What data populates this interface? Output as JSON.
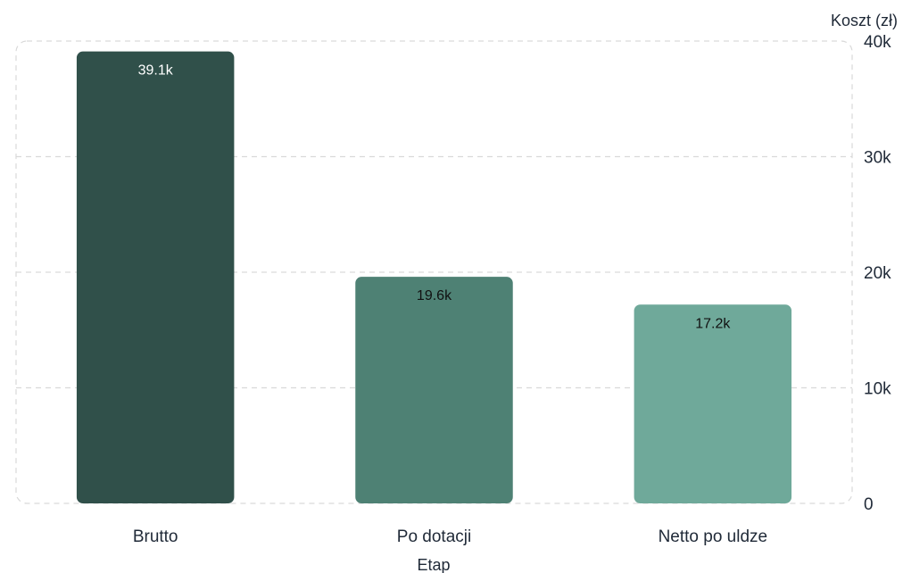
{
  "chart_data": {
    "type": "bar",
    "title": "",
    "xlabel": "Etap",
    "ylabel": "Koszt (zł)",
    "categories": [
      "Brutto",
      "Po dotacji",
      "Netto po uldze"
    ],
    "values": [
      39100,
      19600,
      17200
    ],
    "data_labels": [
      "39.1k",
      "19.6k",
      "17.2k"
    ],
    "ylim": [
      0,
      40000
    ],
    "yticks": [
      0,
      10000,
      20000,
      30000,
      40000
    ],
    "ytick_labels": [
      "0",
      "10k",
      "20k",
      "30k",
      "40k"
    ],
    "y_axis_side": "right",
    "grid": true,
    "legend": "none",
    "colors": [
      "#30504a",
      "#4e8174",
      "#6fa99a"
    ],
    "label_colors": [
      "#ffffff",
      "#111111",
      "#111111"
    ],
    "grid_color": "#d9d9d9"
  }
}
